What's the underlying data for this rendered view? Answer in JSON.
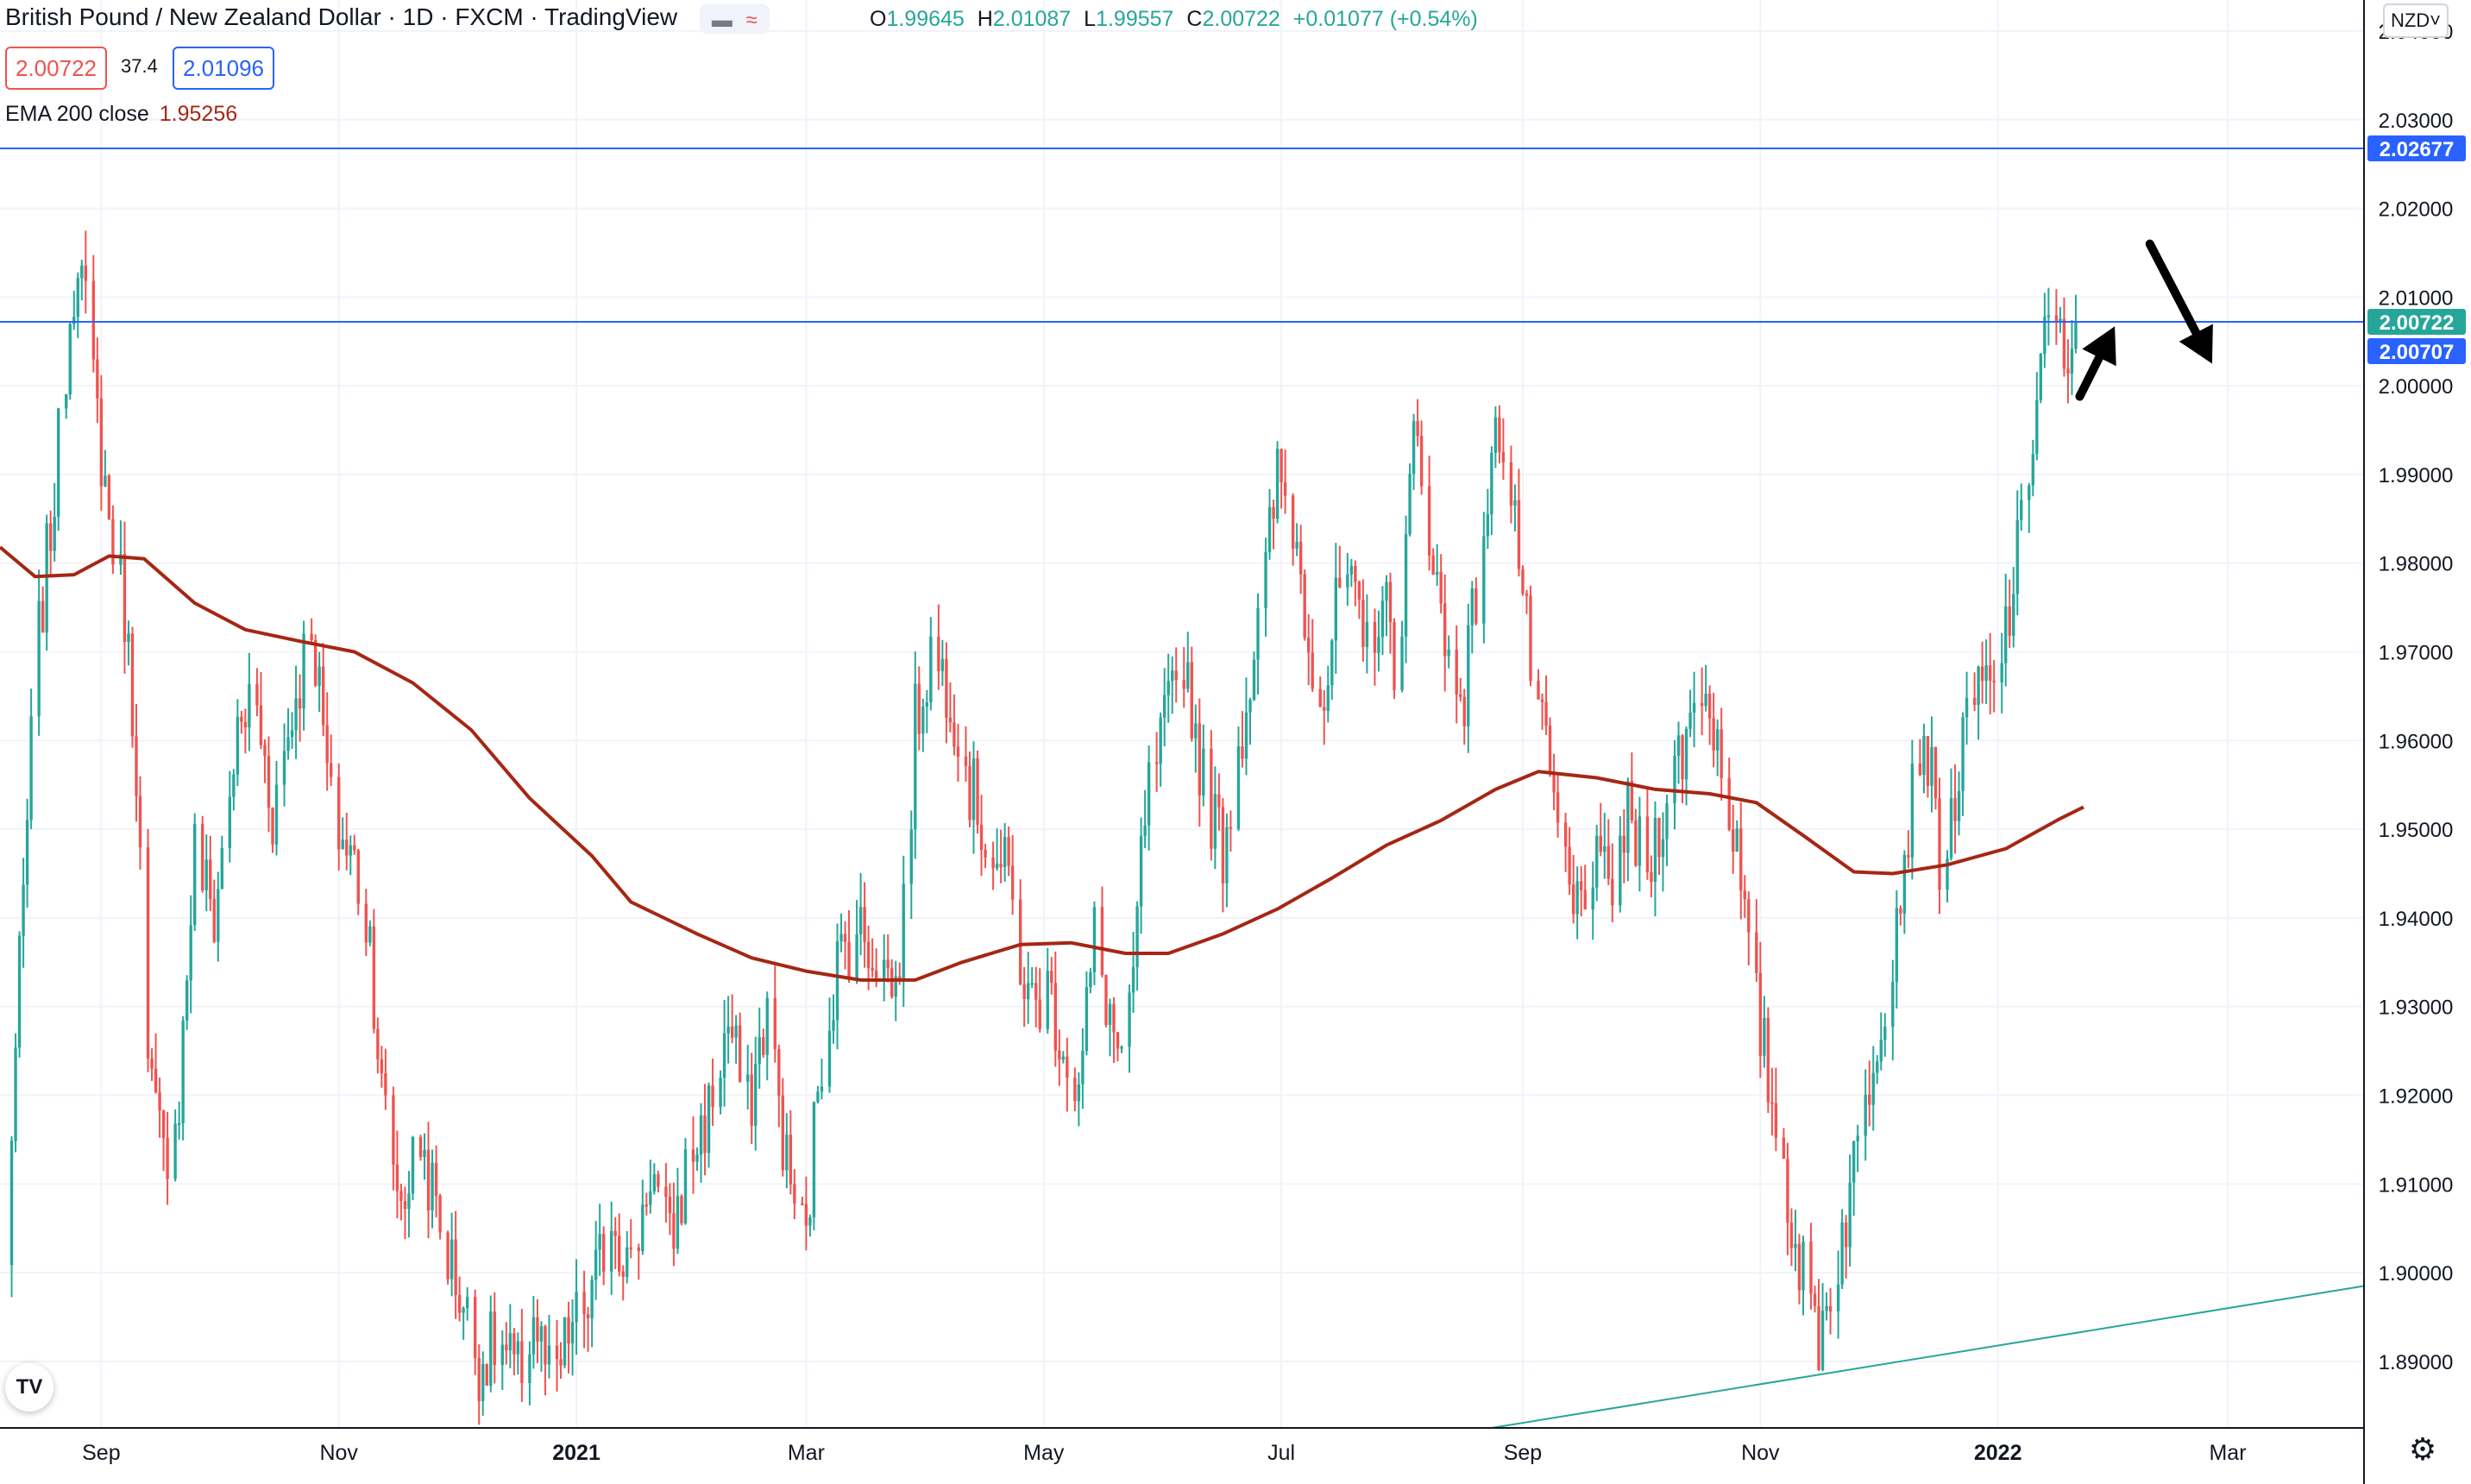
{
  "header": {
    "title": "British Pound / New Zealand Dollar · 1D · FXCM · TradingView",
    "ohlc": {
      "o_label": "O",
      "o": "1.99645",
      "h_label": "H",
      "h": "2.01087",
      "l_label": "L",
      "l": "1.99557",
      "c_label": "C",
      "c": "2.00722",
      "change": "+0.01077 (+0.54%)"
    },
    "bid": "2.00722",
    "spread": "37.4",
    "ask": "2.01096",
    "indicator_name": "EMA 200 close",
    "indicator_value": "1.95256",
    "currency": "NZD",
    "currency_chevron": "chevron-down-icon",
    "icons": [
      "eye-icon",
      "wave-icon",
      "tradingview-logo-icon",
      "gear-icon"
    ]
  },
  "colors": {
    "up": "#26a69a",
    "down": "#ef5350",
    "ema": "#a52714",
    "hline": "#2962ff",
    "trendline": "#26a69a",
    "grid": "#f0f3fa",
    "axis_text": "#131722"
  },
  "chart_data": {
    "type": "candlestick",
    "symbol": "GBP/NZD",
    "interval": "1D",
    "y_axis": {
      "range": [
        1.8825,
        2.0435
      ],
      "ticks": [
        "1.89000",
        "1.90000",
        "1.91000",
        "1.92000",
        "1.93000",
        "1.94000",
        "1.95000",
        "1.96000",
        "1.97000",
        "1.98000",
        "1.99000",
        "2.00000",
        "2.01000",
        "2.02000",
        "2.03000",
        "2.04000"
      ]
    },
    "x_axis": {
      "range": [
        "2020-08-06",
        "2022-04-05"
      ],
      "ticks": [
        {
          "label": "Sep",
          "date": "2020-09-01"
        },
        {
          "label": "Nov",
          "date": "2020-11-01"
        },
        {
          "label": "2021",
          "date": "2021-01-01"
        },
        {
          "label": "Mar",
          "date": "2021-03-01"
        },
        {
          "label": "May",
          "date": "2021-05-01"
        },
        {
          "label": "Jul",
          "date": "2021-07-01"
        },
        {
          "label": "Sep",
          "date": "2021-09-01"
        },
        {
          "label": "Nov",
          "date": "2021-11-01"
        },
        {
          "label": "2022",
          "date": "2022-01-01"
        },
        {
          "label": "Mar",
          "date": "2022-03-01"
        }
      ]
    },
    "grid": true,
    "price_path": [
      [
        "2020-08-07",
        1.9
      ],
      [
        "2020-08-10",
        1.925
      ],
      [
        "2020-08-15",
        1.968
      ],
      [
        "2020-08-20",
        1.988
      ],
      [
        "2020-08-24",
        2.008
      ],
      [
        "2020-08-26",
        2.016
      ],
      [
        "2020-08-29",
        2.004
      ],
      [
        "2020-09-03",
        1.985
      ],
      [
        "2020-09-07",
        1.975
      ],
      [
        "2020-09-10",
        1.958
      ],
      [
        "2020-09-13",
        1.922
      ],
      [
        "2020-09-17",
        1.913
      ],
      [
        "2020-09-21",
        1.92
      ],
      [
        "2020-09-25",
        1.948
      ],
      [
        "2020-09-30",
        1.94
      ],
      [
        "2020-10-05",
        1.958
      ],
      [
        "2020-10-10",
        1.966
      ],
      [
        "2020-10-15",
        1.952
      ],
      [
        "2020-10-20",
        1.963
      ],
      [
        "2020-10-25",
        1.974
      ],
      [
        "2020-10-30",
        1.952
      ],
      [
        "2020-11-05",
        1.946
      ],
      [
        "2020-11-09",
        1.938
      ],
      [
        "2020-11-12",
        1.92
      ],
      [
        "2020-11-17",
        1.908
      ],
      [
        "2020-11-22",
        1.915
      ],
      [
        "2020-11-27",
        1.905
      ],
      [
        "2020-12-02",
        1.898
      ],
      [
        "2020-12-07",
        1.89
      ],
      [
        "2020-12-12",
        1.892
      ],
      [
        "2020-12-17",
        1.888
      ],
      [
        "2020-12-21",
        1.895
      ],
      [
        "2020-12-26",
        1.886
      ],
      [
        "2020-12-30",
        1.893
      ],
      [
        "2021-01-05",
        1.897
      ],
      [
        "2021-01-10",
        1.907
      ],
      [
        "2021-01-15",
        1.9
      ],
      [
        "2021-01-20",
        1.912
      ],
      [
        "2021-01-25",
        1.903
      ],
      [
        "2021-01-30",
        1.913
      ],
      [
        "2021-02-04",
        1.918
      ],
      [
        "2021-02-09",
        1.928
      ],
      [
        "2021-02-14",
        1.918
      ],
      [
        "2021-02-19",
        1.93
      ],
      [
        "2021-02-24",
        1.912
      ],
      [
        "2021-03-01",
        1.903
      ],
      [
        "2021-03-04",
        1.922
      ],
      [
        "2021-03-09",
        1.935
      ],
      [
        "2021-03-14",
        1.939
      ],
      [
        "2021-03-19",
        1.936
      ],
      [
        "2021-03-24",
        1.932
      ],
      [
        "2021-03-27",
        1.945
      ],
      [
        "2021-03-29",
        1.962
      ],
      [
        "2021-04-02",
        1.97
      ],
      [
        "2021-04-07",
        1.966
      ],
      [
        "2021-04-12",
        1.955
      ],
      [
        "2021-04-17",
        1.948
      ],
      [
        "2021-04-22",
        1.944
      ],
      [
        "2021-04-27",
        1.93
      ],
      [
        "2021-05-02",
        1.932
      ],
      [
        "2021-05-06",
        1.926
      ],
      [
        "2021-05-10",
        1.92
      ],
      [
        "2021-05-14",
        1.938
      ],
      [
        "2021-05-18",
        1.929
      ],
      [
        "2021-05-22",
        1.921
      ],
      [
        "2021-05-27",
        1.952
      ],
      [
        "2021-06-01",
        1.961
      ],
      [
        "2021-06-06",
        1.97
      ],
      [
        "2021-06-11",
        1.955
      ],
      [
        "2021-06-16",
        1.948
      ],
      [
        "2021-06-21",
        1.962
      ],
      [
        "2021-06-26",
        1.975
      ],
      [
        "2021-06-30",
        1.99
      ],
      [
        "2021-07-04",
        1.985
      ],
      [
        "2021-07-08",
        1.972
      ],
      [
        "2021-07-12",
        1.965
      ],
      [
        "2021-07-17",
        1.98
      ],
      [
        "2021-07-22",
        1.97
      ],
      [
        "2021-07-27",
        1.976
      ],
      [
        "2021-07-31",
        1.968
      ],
      [
        "2021-08-04",
        1.994
      ],
      [
        "2021-08-08",
        1.985
      ],
      [
        "2021-08-12",
        1.97
      ],
      [
        "2021-08-17",
        1.966
      ],
      [
        "2021-08-22",
        1.984
      ],
      [
        "2021-08-26",
        1.996
      ],
      [
        "2021-08-29",
        1.99
      ],
      [
        "2021-09-02",
        1.972
      ],
      [
        "2021-09-06",
        1.96
      ],
      [
        "2021-09-10",
        1.95
      ],
      [
        "2021-09-14",
        1.94
      ],
      [
        "2021-09-18",
        1.946
      ],
      [
        "2021-09-23",
        1.943
      ],
      [
        "2021-09-28",
        1.951
      ],
      [
        "2021-10-03",
        1.945
      ],
      [
        "2021-10-07",
        1.953
      ],
      [
        "2021-10-12",
        1.959
      ],
      [
        "2021-10-17",
        1.967
      ],
      [
        "2021-10-20",
        1.962
      ],
      [
        "2021-10-25",
        1.951
      ],
      [
        "2021-10-29",
        1.935
      ],
      [
        "2021-11-03",
        1.922
      ],
      [
        "2021-11-07",
        1.912
      ],
      [
        "2021-11-11",
        1.901
      ],
      [
        "2021-11-16",
        1.893
      ],
      [
        "2021-11-21",
        1.902
      ],
      [
        "2021-11-26",
        1.914
      ],
      [
        "2021-11-30",
        1.925
      ],
      [
        "2021-12-05",
        1.937
      ],
      [
        "2021-12-09",
        1.951
      ],
      [
        "2021-12-13",
        1.962
      ],
      [
        "2021-12-18",
        1.944
      ],
      [
        "2021-12-22",
        1.957
      ],
      [
        "2021-12-27",
        1.966
      ],
      [
        "2021-12-31",
        1.965
      ],
      [
        "2022-01-04",
        1.975
      ],
      [
        "2022-01-08",
        1.986
      ],
      [
        "2022-01-11",
        2.0
      ],
      [
        "2022-01-14",
        2.009
      ],
      [
        "2022-01-17",
        2.004
      ],
      [
        "2022-01-19",
        1.998
      ],
      [
        "2022-01-21",
        2.0072
      ]
    ],
    "ema200": [
      [
        "2020-08-06",
        1.9818
      ],
      [
        "2020-08-15",
        1.9785
      ],
      [
        "2020-08-25",
        1.9787
      ],
      [
        "2020-09-03",
        1.9808
      ],
      [
        "2020-09-12",
        1.9805
      ],
      [
        "2020-09-25",
        1.9755
      ],
      [
        "2020-10-08",
        1.9725
      ],
      [
        "2020-10-22",
        1.9712
      ],
      [
        "2020-11-05",
        1.97
      ],
      [
        "2020-11-20",
        1.9665
      ],
      [
        "2020-12-05",
        1.9612
      ],
      [
        "2020-12-20",
        1.9535
      ],
      [
        "2021-01-05",
        1.947
      ],
      [
        "2021-01-15",
        1.9418
      ],
      [
        "2021-02-01",
        1.9382
      ],
      [
        "2021-02-15",
        1.9355
      ],
      [
        "2021-03-01",
        1.934
      ],
      [
        "2021-03-15",
        1.933
      ],
      [
        "2021-03-29",
        1.933
      ],
      [
        "2021-04-10",
        1.935
      ],
      [
        "2021-04-25",
        1.937
      ],
      [
        "2021-05-08",
        1.9372
      ],
      [
        "2021-05-22",
        1.936
      ],
      [
        "2021-06-02",
        1.936
      ],
      [
        "2021-06-16",
        1.9382
      ],
      [
        "2021-06-30",
        1.941
      ],
      [
        "2021-07-14",
        1.9445
      ],
      [
        "2021-07-28",
        1.9482
      ],
      [
        "2021-08-11",
        1.951
      ],
      [
        "2021-08-25",
        1.9545
      ],
      [
        "2021-09-05",
        1.9565
      ],
      [
        "2021-09-20",
        1.9558
      ],
      [
        "2021-10-05",
        1.9545
      ],
      [
        "2021-10-19",
        1.954
      ],
      [
        "2021-10-31",
        1.953
      ],
      [
        "2021-11-12",
        1.9493
      ],
      [
        "2021-11-25",
        1.9452
      ],
      [
        "2021-12-05",
        1.945
      ],
      [
        "2021-12-19",
        1.946
      ],
      [
        "2022-01-03",
        1.9478
      ],
      [
        "2022-01-17",
        1.9512
      ],
      [
        "2022-01-23",
        1.9525
      ]
    ],
    "horizontal_lines": [
      2.02677,
      2.00722
    ],
    "trendline": {
      "start": [
        "2021-08-24",
        1.8825
      ],
      "end": [
        "2022-04-05",
        1.8985
      ]
    },
    "price_labels": [
      {
        "value": "2.02677",
        "color": "#2962ff"
      },
      {
        "value": "2.00722",
        "color": "#26a69a"
      },
      {
        "value": "2.00707",
        "color": "#2962ff"
      }
    ],
    "annotations": [
      {
        "type": "arrow",
        "direction": "up-right",
        "from": [
          "2022-01-22",
          1.9988
        ],
        "to": [
          "2022-01-31",
          2.0067
        ]
      },
      {
        "type": "arrow",
        "direction": "down-right",
        "from": [
          "2022-02-09",
          2.016
        ],
        "to": [
          "2022-02-25",
          2.0025
        ]
      }
    ]
  }
}
